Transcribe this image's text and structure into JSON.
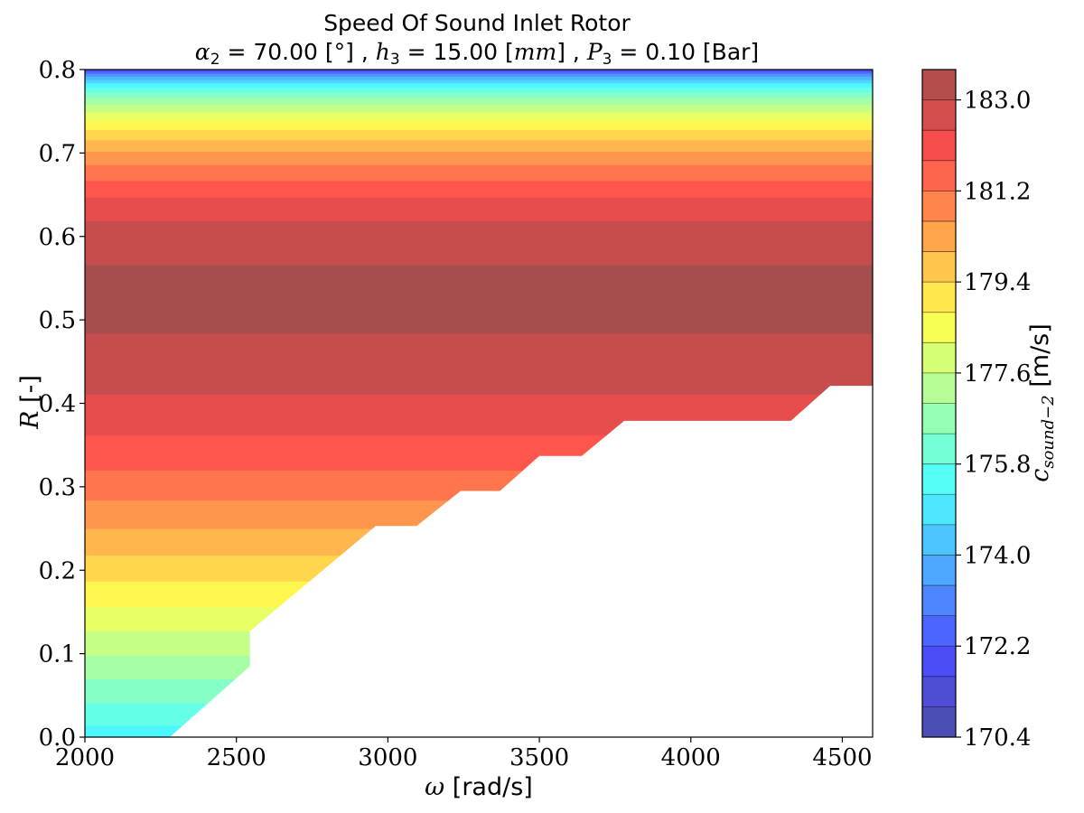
{
  "chart_data": {
    "type": "heatmap",
    "title": "Speed Of Sound Inlet Rotor",
    "subtitle": "α2 = 70.00 [°] , h3 = 15.00 [mm] , P3 = 0.10 [Bar]",
    "subtitle_parts": {
      "alpha_sym": "α",
      "alpha_sub": "2",
      "alpha_val": " = 70.00 [°] , ",
      "h_sym": "h",
      "h_sub": "3",
      "h_val": " = 15.00 [",
      "h_unit": "mm",
      "h_close": "] , ",
      "p_sym": "P",
      "p_sub": "3",
      "p_val": " = 0.10 [Bar]"
    },
    "xlabel_sym": "ω",
    "xlabel_unit": " [rad/s]",
    "ylabel_sym": "R",
    "ylabel_unit": " [-]",
    "colorbar_label_sym": "c",
    "colorbar_label_sub": "sound−2",
    "colorbar_label_unit": " [m/s]",
    "xlim": [
      2000,
      4600
    ],
    "ylim": [
      0.0,
      0.8
    ],
    "xticks": [
      2000,
      2500,
      3000,
      3500,
      4000,
      4500
    ],
    "yticks": [
      "0.0",
      "0.1",
      "0.2",
      "0.3",
      "0.4",
      "0.5",
      "0.6",
      "0.7",
      "0.8"
    ],
    "colorbar_ticks": [
      "170.4",
      "172.2",
      "174.0",
      "175.8",
      "177.6",
      "179.4",
      "181.2",
      "183.0"
    ],
    "colorbar_range": [
      170.4,
      183.6
    ],
    "bands": [
      {
        "r0": 0.0,
        "r1": 0.014,
        "value": 175.2
      },
      {
        "r0": 0.014,
        "r1": 0.041,
        "value": 175.8
      },
      {
        "r0": 0.041,
        "r1": 0.07,
        "value": 176.4
      },
      {
        "r0": 0.07,
        "r1": 0.098,
        "value": 177.0
      },
      {
        "r0": 0.098,
        "r1": 0.127,
        "value": 177.6
      },
      {
        "r0": 0.127,
        "r1": 0.156,
        "value": 178.2
      },
      {
        "r0": 0.156,
        "r1": 0.187,
        "value": 178.8
      },
      {
        "r0": 0.187,
        "r1": 0.218,
        "value": 179.4
      },
      {
        "r0": 0.218,
        "r1": 0.25,
        "value": 180.0
      },
      {
        "r0": 0.25,
        "r1": 0.284,
        "value": 180.6
      },
      {
        "r0": 0.284,
        "r1": 0.32,
        "value": 181.2
      },
      {
        "r0": 0.32,
        "r1": 0.362,
        "value": 181.8
      },
      {
        "r0": 0.362,
        "r1": 0.411,
        "value": 182.4
      },
      {
        "r0": 0.411,
        "r1": 0.484,
        "value": 183.0
      },
      {
        "r0": 0.484,
        "r1": 0.566,
        "value": 183.6
      },
      {
        "r0": 0.566,
        "r1": 0.619,
        "value": 183.0
      },
      {
        "r0": 0.619,
        "r1": 0.647,
        "value": 182.4
      },
      {
        "r0": 0.647,
        "r1": 0.667,
        "value": 181.8
      },
      {
        "r0": 0.667,
        "r1": 0.686,
        "value": 181.2
      },
      {
        "r0": 0.686,
        "r1": 0.702,
        "value": 180.6
      },
      {
        "r0": 0.702,
        "r1": 0.716,
        "value": 180.0
      },
      {
        "r0": 0.716,
        "r1": 0.728,
        "value": 179.4
      },
      {
        "r0": 0.728,
        "r1": 0.739,
        "value": 178.8
      },
      {
        "r0": 0.739,
        "r1": 0.749,
        "value": 178.2
      },
      {
        "r0": 0.749,
        "r1": 0.758,
        "value": 177.6
      },
      {
        "r0": 0.758,
        "r1": 0.766,
        "value": 177.0
      },
      {
        "r0": 0.766,
        "r1": 0.773,
        "value": 176.4
      },
      {
        "r0": 0.773,
        "r1": 0.779,
        "value": 175.8
      },
      {
        "r0": 0.779,
        "r1": 0.784,
        "value": 175.2
      },
      {
        "r0": 0.784,
        "r1": 0.788,
        "value": 174.6
      },
      {
        "r0": 0.788,
        "r1": 0.792,
        "value": 174.0
      },
      {
        "r0": 0.792,
        "r1": 0.795,
        "value": 173.4
      },
      {
        "r0": 0.795,
        "r1": 0.797,
        "value": 172.8
      },
      {
        "r0": 0.797,
        "r1": 0.799,
        "value": 172.2
      },
      {
        "r0": 0.799,
        "r1": 0.8,
        "value": 171.6
      }
    ],
    "invalid_region_boundary": [
      [
        2280,
        0.0
      ],
      [
        2545,
        0.085
      ],
      [
        2545,
        0.127
      ],
      [
        2960,
        0.253
      ],
      [
        3095,
        0.253
      ],
      [
        3240,
        0.295
      ],
      [
        3370,
        0.295
      ],
      [
        3500,
        0.337
      ],
      [
        3640,
        0.337
      ],
      [
        3780,
        0.379
      ],
      [
        4330,
        0.379
      ],
      [
        4460,
        0.421
      ],
      [
        4600,
        0.421
      ],
      [
        4600,
        0.0
      ]
    ],
    "colors": {
      "colormap": "jet",
      "alpha": 0.7,
      "background": "#ffffff"
    },
    "grid": false
  }
}
